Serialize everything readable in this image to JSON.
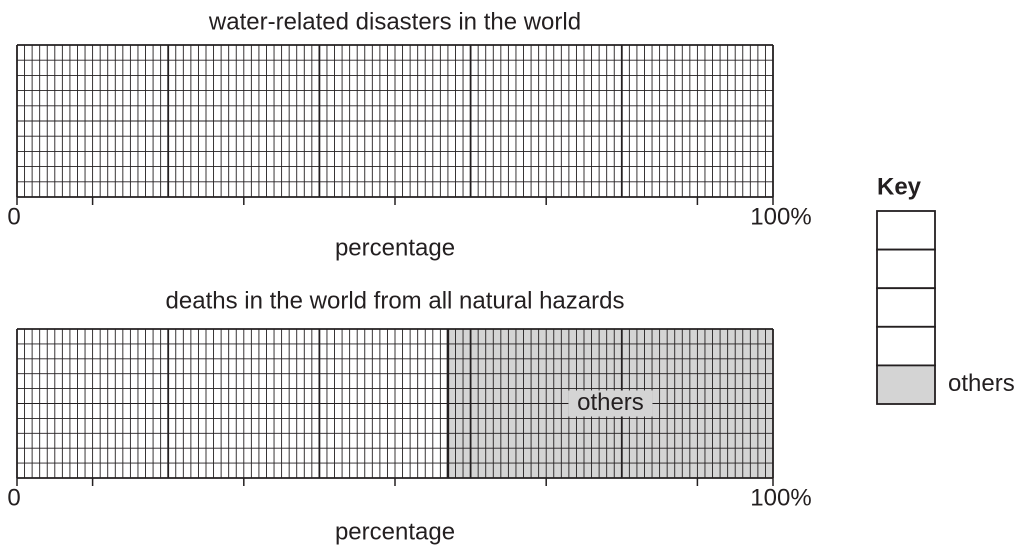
{
  "chart_data": [
    {
      "type": "divided-bar",
      "title": "water-related disasters in the world",
      "x_label": "percentage",
      "xlim": [
        0,
        100
      ],
      "xticks": [
        0,
        {
          "value": 100,
          "label": "100%"
        }
      ],
      "grid": true,
      "series": []
    },
    {
      "type": "divided-bar",
      "title": "deaths in the world from all natural hazards",
      "x_label": "percentage",
      "xlim": [
        0,
        100
      ],
      "xticks": [
        0,
        {
          "value": 100,
          "label": "100%"
        }
      ],
      "grid": true,
      "series": [
        {
          "name": "others",
          "color": "#d4d4d4",
          "values": [
            43
          ]
        }
      ]
    }
  ],
  "key": {
    "title": "Key"
  }
}
